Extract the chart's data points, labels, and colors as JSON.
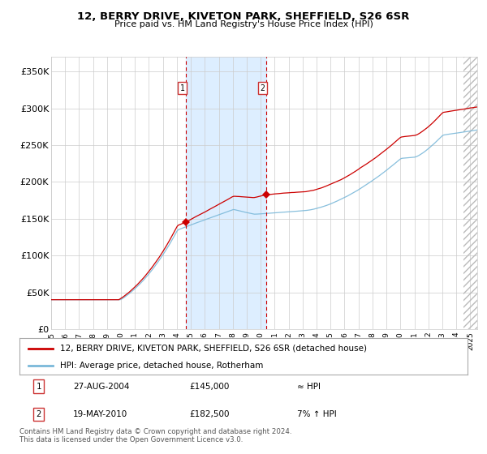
{
  "title": "12, BERRY DRIVE, KIVETON PARK, SHEFFIELD, S26 6SR",
  "subtitle": "Price paid vs. HM Land Registry's House Price Index (HPI)",
  "legend_line1": "12, BERRY DRIVE, KIVETON PARK, SHEFFIELD, S26 6SR (detached house)",
  "legend_line2": "HPI: Average price, detached house, Rotherham",
  "footnote1": "Contains HM Land Registry data © Crown copyright and database right 2024.",
  "footnote2": "This data is licensed under the Open Government Licence v3.0.",
  "table_row1_num": "1",
  "table_row1_date": "27-AUG-2004",
  "table_row1_price": "£145,000",
  "table_row1_hpi": "≈ HPI",
  "table_row2_num": "2",
  "table_row2_date": "19-MAY-2010",
  "table_row2_price": "£182,500",
  "table_row2_hpi": "7% ↑ HPI",
  "hpi_color": "#7ab8d9",
  "price_color": "#cc0000",
  "marker_color": "#cc0000",
  "dashed_color": "#cc0000",
  "shade_color": "#ddeeff",
  "ylim": [
    0,
    370000
  ],
  "yticks": [
    0,
    50000,
    100000,
    150000,
    200000,
    250000,
    300000,
    350000
  ],
  "ytick_labels": [
    "£0",
    "£50K",
    "£100K",
    "£150K",
    "£200K",
    "£250K",
    "£300K",
    "£350K"
  ],
  "xstart": 1995.0,
  "xend": 2025.5,
  "purchase_dates": [
    2004.65,
    2010.38
  ],
  "purchase_prices": [
    145000,
    182500
  ],
  "event_numbers": [
    "1",
    "2"
  ],
  "bg_color": "#ffffff",
  "grid_color": "#cccccc",
  "diag_line_color": "#bbbbbb"
}
